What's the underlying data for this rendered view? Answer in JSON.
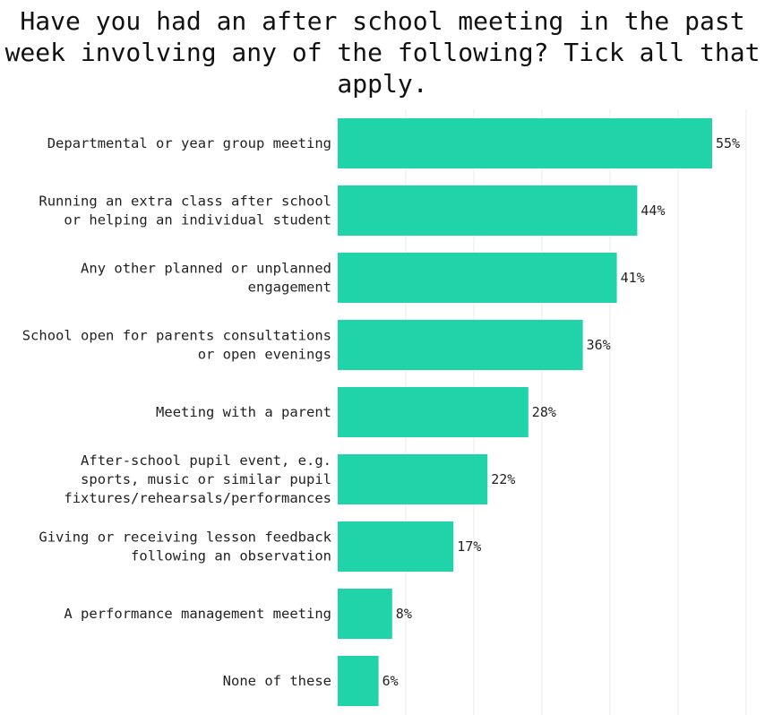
{
  "chart_data": {
    "type": "bar",
    "orientation": "horizontal",
    "title": "Have you had an after school meeting in the past week involving any of the following? Tick all that apply.",
    "categories": [
      [
        "Departmental or year group meeting"
      ],
      [
        "Running an extra class after school",
        "or helping an individual student"
      ],
      [
        "Any other planned or unplanned",
        "engagement"
      ],
      [
        "School open for parents consultations",
        "or open evenings"
      ],
      [
        "Meeting with a parent"
      ],
      [
        "After-school pupil event, e.g.",
        "sports, music or similar pupil",
        "fixtures/rehearsals/performances"
      ],
      [
        "Giving or receiving lesson feedback",
        "following an observation"
      ],
      [
        "A performance management meeting"
      ],
      [
        "None of these"
      ]
    ],
    "values": [
      55,
      44,
      41,
      36,
      28,
      22,
      17,
      8,
      6
    ],
    "value_labels": [
      "55%",
      "44%",
      "41%",
      "36%",
      "28%",
      "22%",
      "17%",
      "8%",
      "6%"
    ],
    "xlim": [
      0,
      60
    ],
    "grid": true,
    "bar_color": "#20d3a8"
  }
}
